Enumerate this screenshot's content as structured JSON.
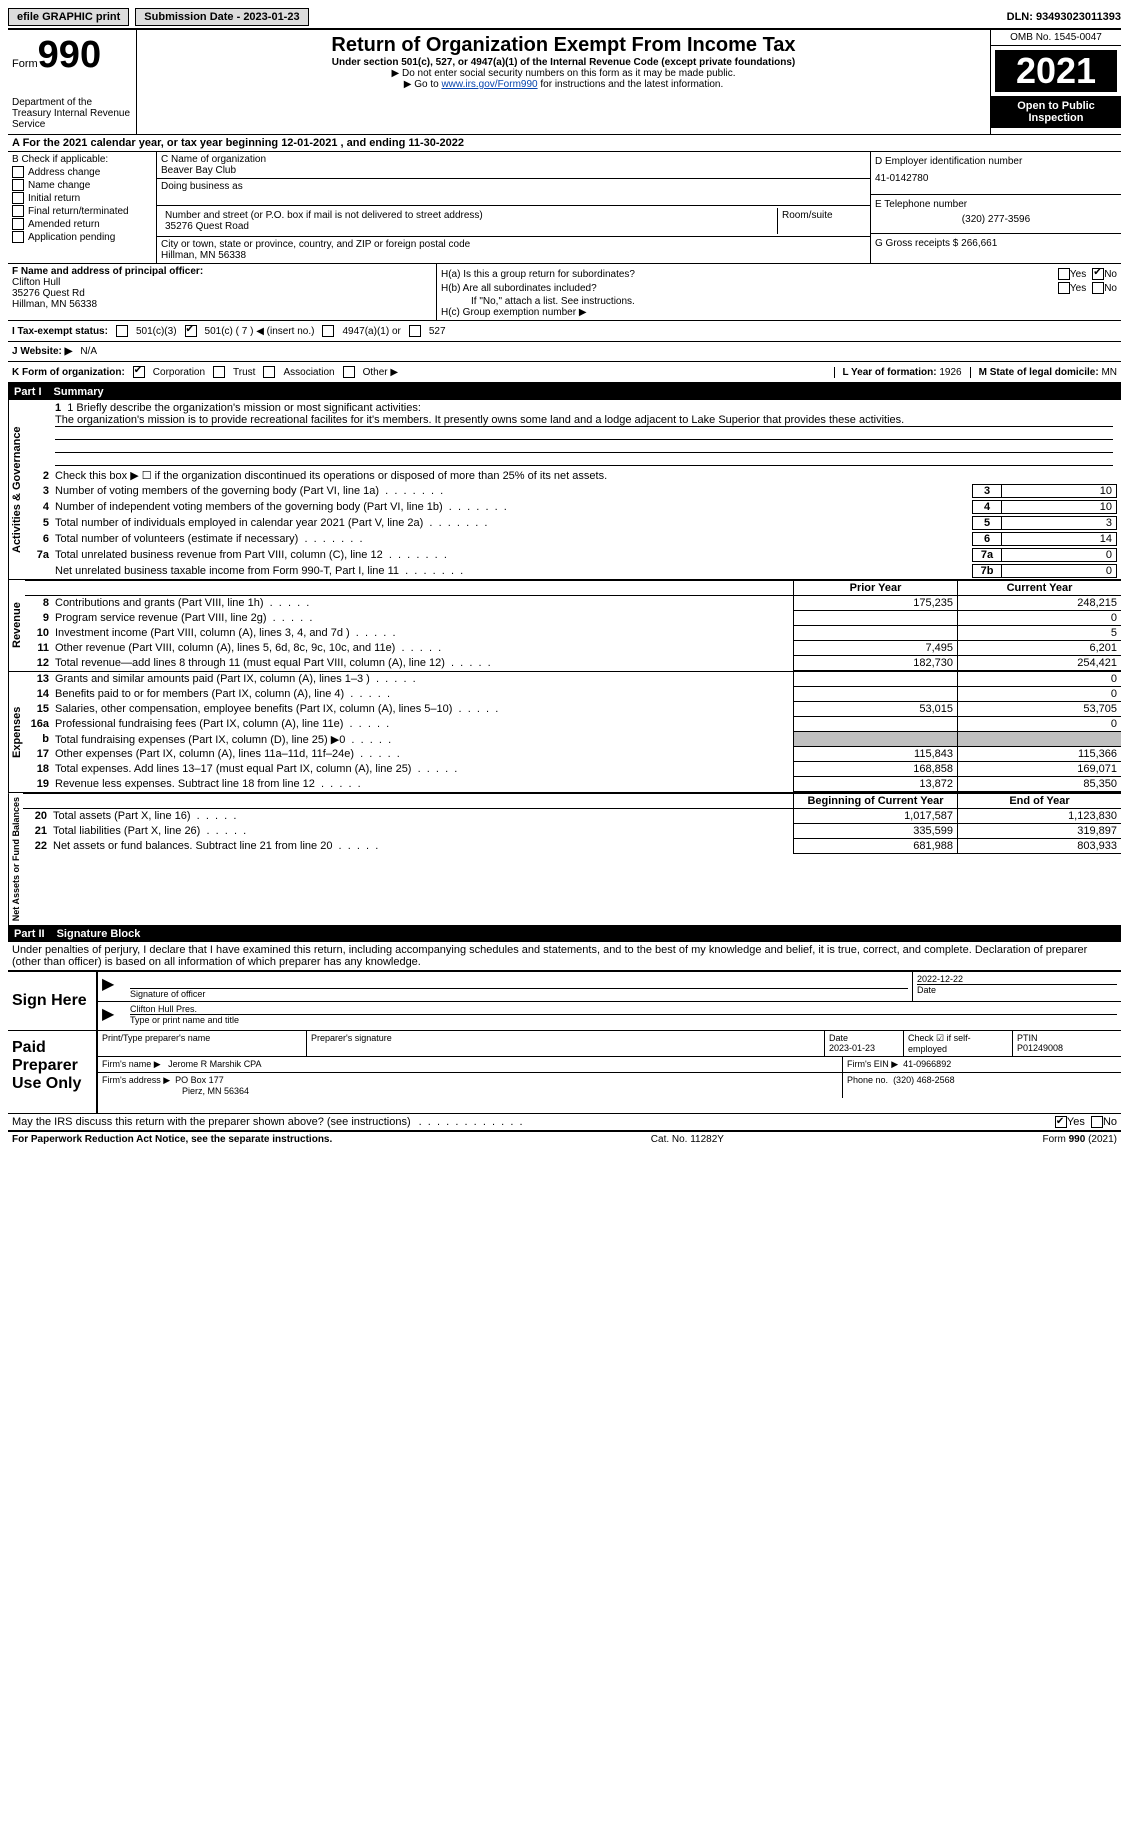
{
  "topbar": {
    "efile": "efile GRAPHIC print",
    "submission": "Submission Date - 2023-01-23",
    "dln": "DLN: 93493023011393"
  },
  "header": {
    "form_label": "Form",
    "form_number": "990",
    "dept": "Department of the Treasury Internal Revenue Service",
    "title": "Return of Organization Exempt From Income Tax",
    "subtitle": "Under section 501(c), 527, or 4947(a)(1) of the Internal Revenue Code (except private foundations)",
    "note1": "▶ Do not enter social security numbers on this form as it may be made public.",
    "note2_pre": "▶ Go to ",
    "note2_link": "www.irs.gov/Form990",
    "note2_post": " for instructions and the latest information.",
    "omb": "OMB No. 1545-0047",
    "year": "2021",
    "open": "Open to Public Inspection"
  },
  "rowA": "A For the 2021 calendar year, or tax year beginning 12-01-2021    , and ending 11-30-2022",
  "sectionB": {
    "label": "B Check if applicable:",
    "options": [
      "Address change",
      "Name change",
      "Initial return",
      "Final return/terminated",
      "Amended return",
      "Application pending"
    ]
  },
  "sectionC": {
    "name_label": "C Name of organization",
    "name": "Beaver Bay Club",
    "dba_label": "Doing business as",
    "addr_label": "Number and street (or P.O. box if mail is not delivered to street address)",
    "room_label": "Room/suite",
    "addr": "35276 Quest Road",
    "city_label": "City or town, state or province, country, and ZIP or foreign postal code",
    "city": "Hillman, MN  56338"
  },
  "sectionD": {
    "ein_label": "D Employer identification number",
    "ein": "41-0142780",
    "phone_label": "E Telephone number",
    "phone": "(320) 277-3596",
    "gross_label": "G Gross receipts $",
    "gross": "266,661"
  },
  "sectionF": {
    "label": "F  Name and address of principal officer:",
    "name": "Clifton Hull",
    "addr": "35276 Quest Rd",
    "city": "Hillman, MN  56338"
  },
  "sectionH": {
    "a_label": "H(a)  Is this a group return for subordinates?",
    "b_label": "H(b)  Are all subordinates included?",
    "note": "If \"No,\" attach a list. See instructions.",
    "c_label": "H(c)  Group exemption number ▶"
  },
  "sectionI": {
    "label": "I  Tax-exempt status:",
    "opt1": "501(c)(3)",
    "opt2": "501(c) ( 7 ) ◀ (insert no.)",
    "opt3": "4947(a)(1) or",
    "opt4": "527"
  },
  "sectionJ": {
    "label": "J  Website: ▶",
    "value": "N/A"
  },
  "sectionK": {
    "label": "K Form of organization:",
    "opts": [
      "Corporation",
      "Trust",
      "Association",
      "Other ▶"
    ],
    "l_label": "L Year of formation:",
    "l_val": "1926",
    "m_label": "M State of legal domicile:",
    "m_val": "MN"
  },
  "part1": {
    "label": "Part I",
    "title": "Summary",
    "side1": "Activities & Governance",
    "side2": "Revenue",
    "side3": "Expenses",
    "side4": "Net Assets or Fund Balances",
    "line1_label": "1  Briefly describe the organization's mission or most significant activities:",
    "line1_text": "The organization's mission is to provide recreational facilites for it's members. It presently owns some land and a lodge adjacent to Lake Superior that provides these activities.",
    "line2": "Check this box ▶ ☐  if the organization discontinued its operations or disposed of more than 25% of its net assets.",
    "lines_gov": [
      {
        "num": "3",
        "text": "Number of voting members of the governing body (Part VI, line 1a)",
        "box": "3",
        "val": "10"
      },
      {
        "num": "4",
        "text": "Number of independent voting members of the governing body (Part VI, line 1b)",
        "box": "4",
        "val": "10"
      },
      {
        "num": "5",
        "text": "Total number of individuals employed in calendar year 2021 (Part V, line 2a)",
        "box": "5",
        "val": "3"
      },
      {
        "num": "6",
        "text": "Total number of volunteers (estimate if necessary)",
        "box": "6",
        "val": "14"
      },
      {
        "num": "7a",
        "text": "Total unrelated business revenue from Part VIII, column (C), line 12",
        "box": "7a",
        "val": "0"
      },
      {
        "num": "",
        "text": "Net unrelated business taxable income from Form 990-T, Part I, line 11",
        "box": "7b",
        "val": "0"
      }
    ],
    "col_prior": "Prior Year",
    "col_current": "Current Year",
    "col_begin": "Beginning of Current Year",
    "col_end": "End of Year",
    "revenue": [
      {
        "num": "8",
        "text": "Contributions and grants (Part VIII, line 1h)",
        "prior": "175,235",
        "current": "248,215"
      },
      {
        "num": "9",
        "text": "Program service revenue (Part VIII, line 2g)",
        "prior": "",
        "current": "0"
      },
      {
        "num": "10",
        "text": "Investment income (Part VIII, column (A), lines 3, 4, and 7d )",
        "prior": "",
        "current": "5"
      },
      {
        "num": "11",
        "text": "Other revenue (Part VIII, column (A), lines 5, 6d, 8c, 9c, 10c, and 11e)",
        "prior": "7,495",
        "current": "6,201"
      },
      {
        "num": "12",
        "text": "Total revenue—add lines 8 through 11 (must equal Part VIII, column (A), line 12)",
        "prior": "182,730",
        "current": "254,421"
      }
    ],
    "expenses": [
      {
        "num": "13",
        "text": "Grants and similar amounts paid (Part IX, column (A), lines 1–3 )",
        "prior": "",
        "current": "0"
      },
      {
        "num": "14",
        "text": "Benefits paid to or for members (Part IX, column (A), line 4)",
        "prior": "",
        "current": "0"
      },
      {
        "num": "15",
        "text": "Salaries, other compensation, employee benefits (Part IX, column (A), lines 5–10)",
        "prior": "53,015",
        "current": "53,705"
      },
      {
        "num": "16a",
        "text": "Professional fundraising fees (Part IX, column (A), line 11e)",
        "prior": "",
        "current": "0"
      },
      {
        "num": "b",
        "text": "Total fundraising expenses (Part IX, column (D), line 25) ▶0",
        "prior": "GREY",
        "current": "GREY"
      },
      {
        "num": "17",
        "text": "Other expenses (Part IX, column (A), lines 11a–11d, 11f–24e)",
        "prior": "115,843",
        "current": "115,366"
      },
      {
        "num": "18",
        "text": "Total expenses. Add lines 13–17 (must equal Part IX, column (A), line 25)",
        "prior": "168,858",
        "current": "169,071"
      },
      {
        "num": "19",
        "text": "Revenue less expenses. Subtract line 18 from line 12",
        "prior": "13,872",
        "current": "85,350"
      }
    ],
    "netassets": [
      {
        "num": "20",
        "text": "Total assets (Part X, line 16)",
        "prior": "1,017,587",
        "current": "1,123,830"
      },
      {
        "num": "21",
        "text": "Total liabilities (Part X, line 26)",
        "prior": "335,599",
        "current": "319,897"
      },
      {
        "num": "22",
        "text": "Net assets or fund balances. Subtract line 21 from line 20",
        "prior": "681,988",
        "current": "803,933"
      }
    ]
  },
  "part2": {
    "label": "Part II",
    "title": "Signature Block",
    "declaration": "Under penalties of perjury, I declare that I have examined this return, including accompanying schedules and statements, and to the best of my knowledge and belief, it is true, correct, and complete. Declaration of preparer (other than officer) is based on all information of which preparer has any knowledge.",
    "sign_here": "Sign Here",
    "sig_officer": "Signature of officer",
    "sig_date": "2022-12-22",
    "date_label": "Date",
    "sig_name": "Clifton Hull  Pres.",
    "sig_name_label": "Type or print name and title",
    "paid": "Paid Preparer Use Only",
    "prep_name_label": "Print/Type preparer's name",
    "prep_sig_label": "Preparer's signature",
    "prep_date_label": "Date",
    "prep_date": "2023-01-23",
    "check_label": "Check ☑ if self-employed",
    "ptin_label": "PTIN",
    "ptin": "P01249008",
    "firm_name_label": "Firm's name      ▶",
    "firm_name": "Jerome R Marshik CPA",
    "firm_ein_label": "Firm's EIN ▶",
    "firm_ein": "41-0966892",
    "firm_addr_label": "Firm's address ▶",
    "firm_addr": "PO Box 177",
    "firm_city": "Pierz, MN  56364",
    "firm_phone_label": "Phone no.",
    "firm_phone": "(320) 468-2568",
    "irs_discuss": "May the IRS discuss this return with the preparer shown above? (see instructions)"
  },
  "footer": {
    "left": "For Paperwork Reduction Act Notice, see the separate instructions.",
    "mid": "Cat. No. 11282Y",
    "right": "Form 990 (2021)"
  }
}
